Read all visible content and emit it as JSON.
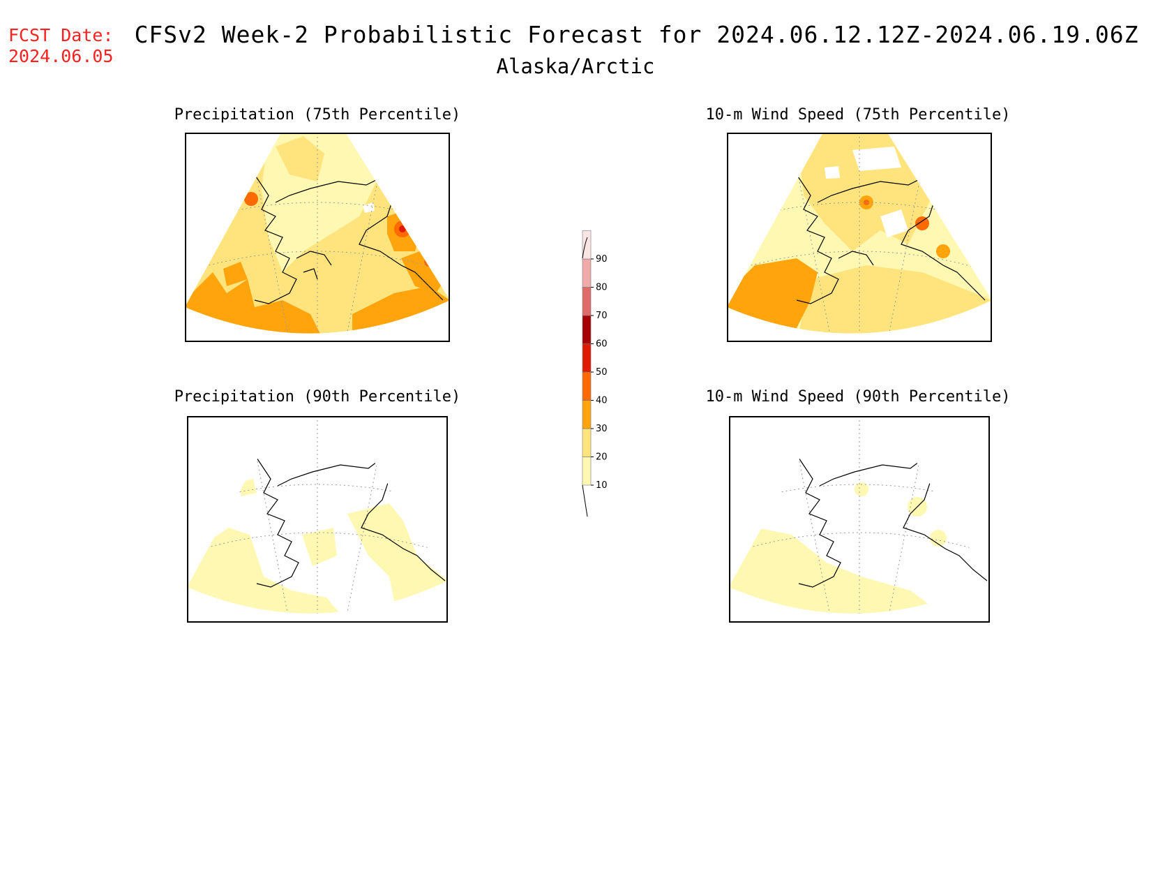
{
  "header": {
    "fcst_label": "FCST Date:",
    "fcst_date": "2024.06.05",
    "title": "CFSv2 Week-2 Probabilistic Forecast for 2024.06.12.12Z-2024.06.19.06Z",
    "region": "Alaska/Arctic"
  },
  "panels": [
    {
      "title": "Precipitation (75th Percentile)"
    },
    {
      "title": "10-m Wind Speed (75th Percentile)"
    },
    {
      "title": "Precipitation (90th Percentile)"
    },
    {
      "title": "10-m Wind Speed (90th Percentile)"
    }
  ],
  "colorbar": {
    "levels": [
      "10",
      "20",
      "30",
      "40",
      "50",
      "60",
      "70",
      "80",
      "90"
    ],
    "colors": [
      "#fff8b2",
      "#ffe47e",
      "#ffa40c",
      "#ff6a00",
      "#e01a00",
      "#a60000",
      "#df6a6a",
      "#f1aaaa",
      "#fbe4e4"
    ]
  }
}
